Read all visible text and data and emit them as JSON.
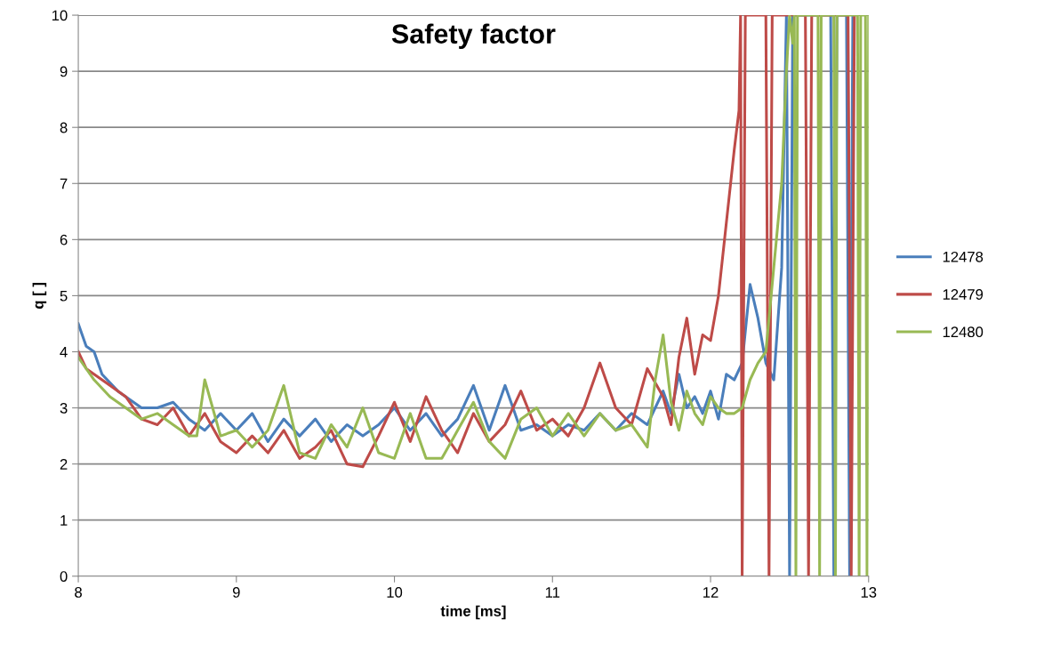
{
  "chart_data": {
    "type": "line",
    "title": "Safety factor",
    "xlabel": "time [ms]",
    "ylabel": "q [ ]",
    "xlim": [
      8,
      13
    ],
    "xticks": [
      8,
      9,
      10,
      11,
      12,
      13
    ],
    "ylim": [
      0,
      10
    ],
    "yticks": [
      0,
      1,
      2,
      3,
      4,
      5,
      6,
      7,
      8,
      9,
      10
    ],
    "grid": "y",
    "legend": "right",
    "marker": "none",
    "line_style": "solid",
    "series": [
      {
        "name": "12478",
        "color": "#4a7ebb",
        "x": [
          8.0,
          8.05,
          8.1,
          8.15,
          8.25,
          8.4,
          8.5,
          8.6,
          8.7,
          8.8,
          8.9,
          9.0,
          9.1,
          9.2,
          9.3,
          9.4,
          9.5,
          9.6,
          9.7,
          9.8,
          9.9,
          10.0,
          10.1,
          10.2,
          10.3,
          10.4,
          10.5,
          10.6,
          10.7,
          10.8,
          10.9,
          11.0,
          11.1,
          11.2,
          11.3,
          11.4,
          11.5,
          11.6,
          11.7,
          11.75,
          11.8,
          11.85,
          11.9,
          11.95,
          12.0,
          12.05,
          12.1,
          12.15,
          12.2,
          12.25,
          12.3,
          12.35,
          12.4,
          12.45,
          12.48,
          12.5,
          12.52,
          12.76,
          12.78,
          12.8,
          12.86,
          12.88,
          12.9
        ],
        "values": [
          4.5,
          4.1,
          4.0,
          3.6,
          3.3,
          3.0,
          3.0,
          3.1,
          2.8,
          2.6,
          2.9,
          2.6,
          2.9,
          2.4,
          2.8,
          2.5,
          2.8,
          2.4,
          2.7,
          2.5,
          2.7,
          3.0,
          2.6,
          2.9,
          2.5,
          2.8,
          3.4,
          2.6,
          3.4,
          2.6,
          2.7,
          2.5,
          2.7,
          2.6,
          2.9,
          2.6,
          2.9,
          2.7,
          3.3,
          2.9,
          3.6,
          3.0,
          3.2,
          2.9,
          3.3,
          2.8,
          3.6,
          3.5,
          3.8,
          5.2,
          4.6,
          3.8,
          3.5,
          5.5,
          10,
          0,
          10,
          10,
          0,
          10,
          10,
          0,
          10
        ]
      },
      {
        "name": "12479",
        "color": "#be4b48",
        "x": [
          8.0,
          8.05,
          8.1,
          8.2,
          8.3,
          8.4,
          8.5,
          8.6,
          8.7,
          8.8,
          8.9,
          9.0,
          9.1,
          9.2,
          9.3,
          9.4,
          9.5,
          9.6,
          9.7,
          9.8,
          9.9,
          10.0,
          10.1,
          10.2,
          10.3,
          10.4,
          10.5,
          10.6,
          10.7,
          10.8,
          10.9,
          11.0,
          11.1,
          11.2,
          11.3,
          11.4,
          11.5,
          11.6,
          11.7,
          11.75,
          11.8,
          11.85,
          11.9,
          11.95,
          12.0,
          12.05,
          12.1,
          12.15,
          12.18,
          12.19,
          12.2,
          12.22,
          12.35,
          12.37,
          12.39,
          12.6,
          12.62,
          12.64,
          12.87,
          12.89,
          12.91
        ],
        "values": [
          4.0,
          3.7,
          3.6,
          3.4,
          3.2,
          2.8,
          2.7,
          3.0,
          2.5,
          2.9,
          2.4,
          2.2,
          2.5,
          2.2,
          2.6,
          2.1,
          2.3,
          2.6,
          2.0,
          1.95,
          2.5,
          3.1,
          2.4,
          3.2,
          2.6,
          2.2,
          2.9,
          2.4,
          2.7,
          3.3,
          2.6,
          2.8,
          2.5,
          3.0,
          3.8,
          3.0,
          2.7,
          3.7,
          3.2,
          2.7,
          3.9,
          4.6,
          3.6,
          4.3,
          4.2,
          5.0,
          6.3,
          7.6,
          8.3,
          10,
          0,
          10,
          10,
          0,
          10,
          10,
          0,
          10,
          10,
          0,
          10
        ]
      },
      {
        "name": "12480",
        "color": "#98b954",
        "x": [
          8.0,
          8.1,
          8.2,
          8.3,
          8.4,
          8.5,
          8.6,
          8.7,
          8.75,
          8.8,
          8.9,
          9.0,
          9.1,
          9.2,
          9.3,
          9.4,
          9.5,
          9.6,
          9.7,
          9.8,
          9.9,
          10.0,
          10.1,
          10.2,
          10.3,
          10.4,
          10.5,
          10.6,
          10.7,
          10.8,
          10.9,
          11.0,
          11.1,
          11.2,
          11.3,
          11.4,
          11.5,
          11.6,
          11.65,
          11.7,
          11.75,
          11.8,
          11.85,
          11.9,
          11.95,
          12.0,
          12.05,
          12.1,
          12.15,
          12.2,
          12.25,
          12.3,
          12.35,
          12.4,
          12.45,
          12.48,
          12.5,
          12.52,
          12.53,
          12.54,
          12.55,
          12.68,
          12.69,
          12.7,
          12.78,
          12.79,
          12.8,
          12.93,
          12.94,
          12.95,
          12.98,
          12.99,
          13.0
        ],
        "values": [
          3.9,
          3.5,
          3.2,
          3.0,
          2.8,
          2.9,
          2.7,
          2.5,
          2.5,
          3.5,
          2.5,
          2.6,
          2.3,
          2.6,
          3.4,
          2.2,
          2.1,
          2.7,
          2.3,
          3.0,
          2.2,
          2.1,
          2.9,
          2.1,
          2.1,
          2.6,
          3.1,
          2.4,
          2.1,
          2.8,
          3.0,
          2.5,
          2.9,
          2.5,
          2.9,
          2.6,
          2.7,
          2.3,
          3.5,
          4.3,
          3.1,
          2.6,
          3.3,
          2.9,
          2.7,
          3.2,
          3.0,
          2.9,
          2.9,
          3.0,
          3.5,
          3.8,
          4.0,
          5.5,
          7.0,
          9.0,
          10,
          9.5,
          10,
          0,
          10,
          10,
          0,
          10,
          10,
          0,
          10,
          10,
          0,
          10,
          10,
          0,
          10
        ]
      }
    ]
  }
}
